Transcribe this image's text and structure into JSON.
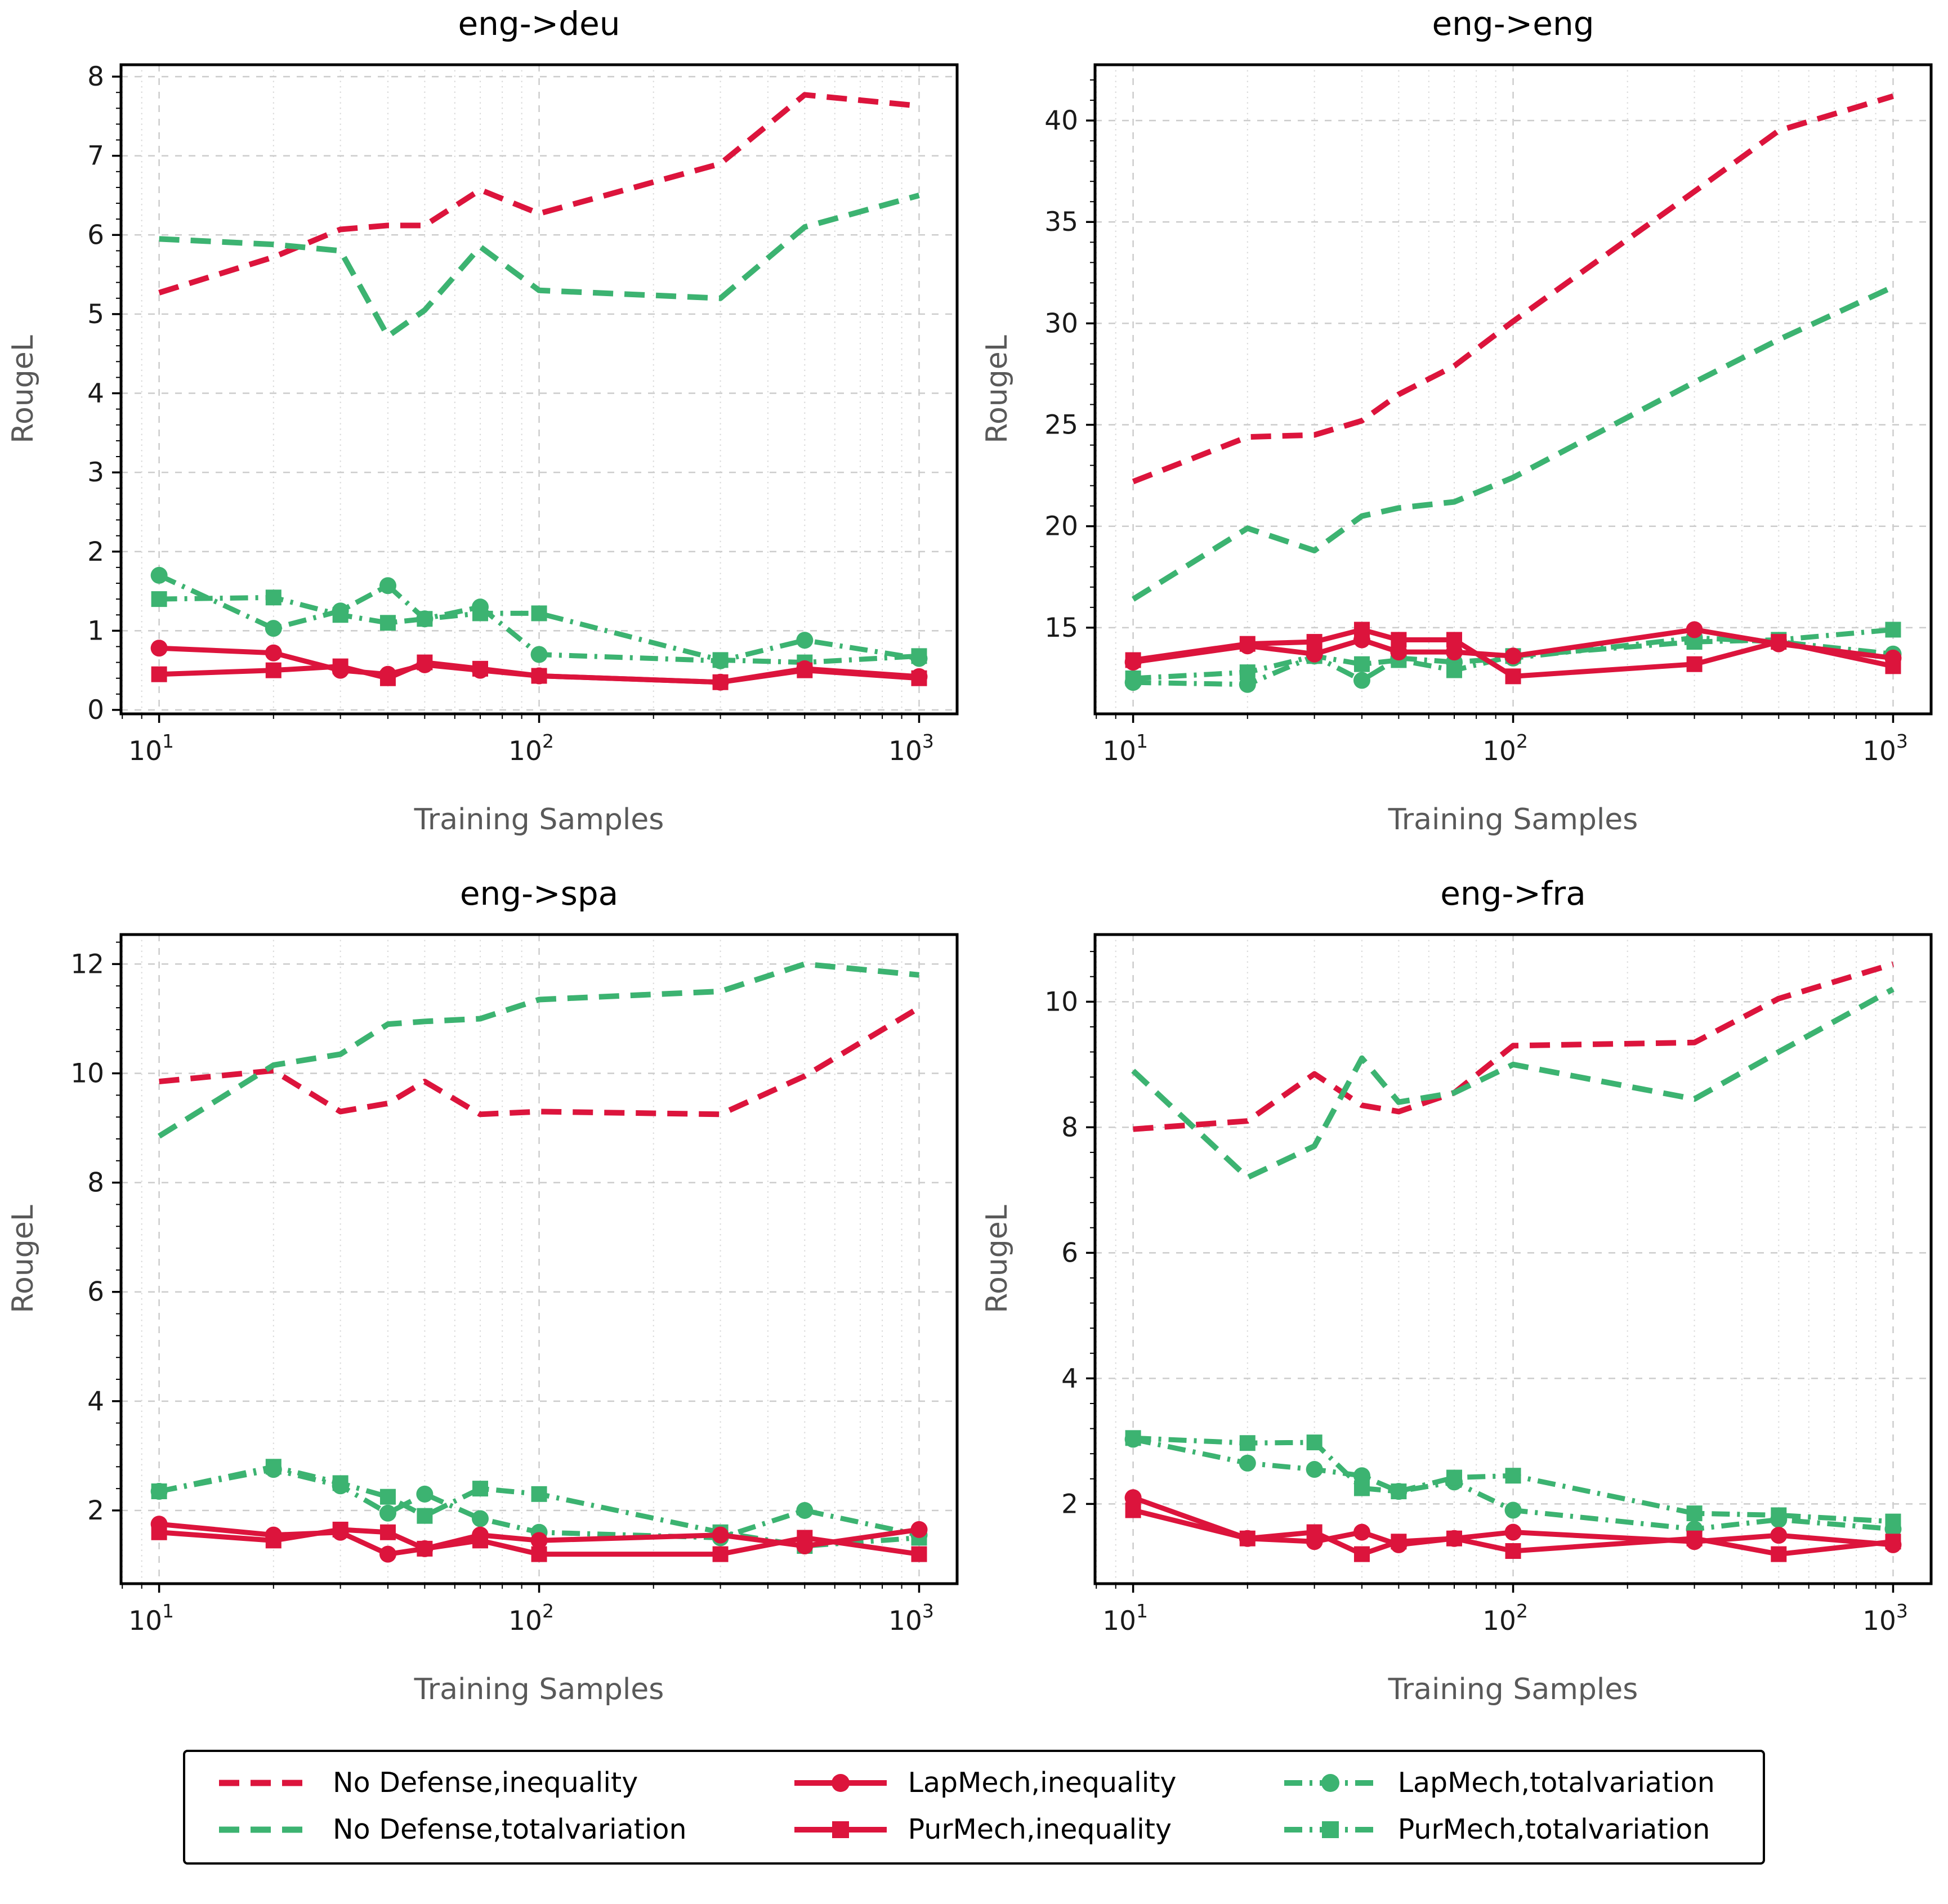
{
  "colors": {
    "red": "#DC143C",
    "green": "#3CB371",
    "grid_major": "#cccccc",
    "grid_minor": "#d9d9d9",
    "spine": "#000000",
    "tick_label": "#1a1a1a",
    "axis_label": "#595959",
    "title": "#000000",
    "background": "#ffffff"
  },
  "axes": {
    "xlim": [
      7.94,
      1259
    ],
    "xlabel": "Training Samples",
    "ylabel": "RougeL",
    "xticks": [
      {
        "value": 10,
        "base": "10",
        "exp": "1"
      },
      {
        "value": 100,
        "base": "10",
        "exp": "2"
      },
      {
        "value": 1000,
        "base": "10",
        "exp": "3"
      }
    ]
  },
  "x_values": [
    10,
    20,
    30,
    40,
    50,
    70,
    100,
    300,
    500,
    1000
  ],
  "series_defs": [
    {
      "id": "no_defense_inequality",
      "label": "No Defense,inequality",
      "color": "red",
      "dash": "dashed",
      "marker": "none"
    },
    {
      "id": "no_defense_totalvariation",
      "label": "No Defense,totalvariation",
      "color": "green",
      "dash": "dashed",
      "marker": "none"
    },
    {
      "id": "lapmech_totalvariation",
      "label": "LapMech,totalvariation",
      "color": "green",
      "dash": "dashdot",
      "marker": "circle"
    },
    {
      "id": "purmech_totalvariation",
      "label": "PurMech,totalvariation",
      "color": "green",
      "dash": "dashdot",
      "marker": "square"
    },
    {
      "id": "lapmech_inequality",
      "label": "LapMech,inequality",
      "color": "red",
      "dash": "solid",
      "marker": "circle"
    },
    {
      "id": "purmech_inequality",
      "label": "PurMech,inequality",
      "color": "red",
      "dash": "solid",
      "marker": "square"
    }
  ],
  "chart_data": [
    {
      "type": "line",
      "title": "eng->deu",
      "xlabel": "Training Samples",
      "ylabel": "RougeL",
      "x": [
        10,
        20,
        30,
        40,
        50,
        70,
        100,
        300,
        500,
        1000
      ],
      "ylim": [
        -0.05,
        8.15
      ],
      "yticks": [
        0,
        1,
        2,
        3,
        4,
        5,
        6,
        7,
        8
      ],
      "series": {
        "no_defense_inequality": [
          5.27,
          5.72,
          6.07,
          6.12,
          6.12,
          6.57,
          6.27,
          6.9,
          7.77,
          7.63
        ],
        "no_defense_totalvariation": [
          5.95,
          5.88,
          5.8,
          4.72,
          5.05,
          5.85,
          5.3,
          5.2,
          6.1,
          6.5
        ],
        "lapmech_totalvariation": [
          1.7,
          1.03,
          1.25,
          1.57,
          1.15,
          1.3,
          0.7,
          0.62,
          0.88,
          0.65
        ],
        "purmech_totalvariation": [
          1.4,
          1.42,
          1.2,
          1.1,
          1.15,
          1.22,
          1.22,
          0.63,
          0.6,
          0.68
        ],
        "lapmech_inequality": [
          0.78,
          0.72,
          0.5,
          0.45,
          0.57,
          0.5,
          0.43,
          0.35,
          0.52,
          0.42
        ],
        "purmech_inequality": [
          0.45,
          0.5,
          0.55,
          0.4,
          0.6,
          0.52,
          0.43,
          0.35,
          0.5,
          0.4
        ]
      }
    },
    {
      "type": "line",
      "title": "eng->eng",
      "xlabel": "Training Samples",
      "ylabel": "RougeL",
      "x": [
        10,
        20,
        30,
        40,
        50,
        70,
        100,
        300,
        500,
        1000
      ],
      "ylim": [
        10.75,
        42.75
      ],
      "yticks": [
        15,
        20,
        25,
        30,
        35,
        40
      ],
      "series": {
        "no_defense_inequality": [
          22.2,
          24.4,
          24.5,
          25.2,
          26.5,
          27.9,
          30.1,
          36.5,
          39.5,
          41.2
        ],
        "no_defense_totalvariation": [
          16.4,
          19.9,
          18.8,
          20.5,
          20.9,
          21.2,
          22.4,
          27.1,
          29.2,
          31.8
        ],
        "lapmech_totalvariation": [
          12.3,
          12.2,
          13.6,
          12.4,
          13.5,
          13.3,
          13.5,
          14.5,
          14.3,
          13.7
        ],
        "purmech_totalvariation": [
          12.5,
          12.8,
          13.6,
          13.2,
          13.4,
          12.9,
          13.6,
          14.3,
          14.4,
          14.9
        ],
        "lapmech_inequality": [
          13.3,
          14.1,
          13.7,
          14.4,
          13.8,
          13.8,
          13.6,
          14.9,
          14.2,
          13.5
        ],
        "purmech_inequality": [
          13.4,
          14.2,
          14.3,
          14.9,
          14.4,
          14.4,
          12.6,
          13.2,
          14.3,
          13.1
        ]
      }
    },
    {
      "type": "line",
      "title": "eng->spa",
      "xlabel": "Training Samples",
      "ylabel": "RougeL",
      "x": [
        10,
        20,
        30,
        40,
        50,
        70,
        100,
        300,
        500,
        1000
      ],
      "ylim": [
        0.66,
        12.54
      ],
      "yticks": [
        2,
        4,
        6,
        8,
        10,
        12
      ],
      "series": {
        "no_defense_inequality": [
          9.85,
          10.05,
          9.3,
          9.45,
          9.85,
          9.25,
          9.3,
          9.25,
          9.95,
          11.2
        ],
        "no_defense_totalvariation": [
          8.85,
          10.15,
          10.35,
          10.9,
          10.95,
          11.0,
          11.35,
          11.5,
          12.0,
          11.8
        ],
        "lapmech_totalvariation": [
          2.35,
          2.75,
          2.45,
          1.95,
          2.3,
          1.85,
          1.6,
          1.5,
          2.0,
          1.55
        ],
        "purmech_totalvariation": [
          2.35,
          2.8,
          2.5,
          2.25,
          1.9,
          2.4,
          2.3,
          1.6,
          1.35,
          1.5
        ],
        "lapmech_inequality": [
          1.75,
          1.55,
          1.6,
          1.2,
          1.3,
          1.55,
          1.45,
          1.55,
          1.35,
          1.65
        ],
        "purmech_inequality": [
          1.6,
          1.45,
          1.65,
          1.6,
          1.3,
          1.45,
          1.2,
          1.2,
          1.5,
          1.2
        ]
      }
    },
    {
      "type": "line",
      "title": "eng->fra",
      "xlabel": "Training Samples",
      "ylabel": "RougeL",
      "x": [
        10,
        20,
        30,
        40,
        50,
        70,
        100,
        300,
        500,
        1000
      ],
      "ylim": [
        0.73,
        11.07
      ],
      "yticks": [
        2,
        4,
        6,
        8,
        10
      ],
      "series": {
        "no_defense_inequality": [
          7.97,
          8.1,
          8.85,
          8.35,
          8.25,
          8.55,
          9.3,
          9.35,
          10.05,
          10.6
        ],
        "no_defense_totalvariation": [
          8.9,
          7.2,
          7.7,
          9.1,
          8.4,
          8.55,
          9.0,
          8.45,
          9.2,
          10.2
        ],
        "lapmech_totalvariation": [
          3.03,
          2.65,
          2.55,
          2.45,
          2.2,
          2.35,
          1.9,
          1.6,
          1.75,
          1.6
        ],
        "purmech_totalvariation": [
          3.05,
          2.97,
          2.98,
          2.25,
          2.2,
          2.42,
          2.45,
          1.85,
          1.82,
          1.72
        ],
        "lapmech_inequality": [
          2.1,
          1.45,
          1.4,
          1.55,
          1.35,
          1.45,
          1.55,
          1.4,
          1.5,
          1.35
        ],
        "purmech_inequality": [
          1.9,
          1.45,
          1.55,
          1.2,
          1.4,
          1.45,
          1.25,
          1.45,
          1.2,
          1.4
        ]
      }
    }
  ],
  "legend": {
    "display_order": [
      0,
      1,
      4,
      5,
      2,
      3
    ]
  }
}
